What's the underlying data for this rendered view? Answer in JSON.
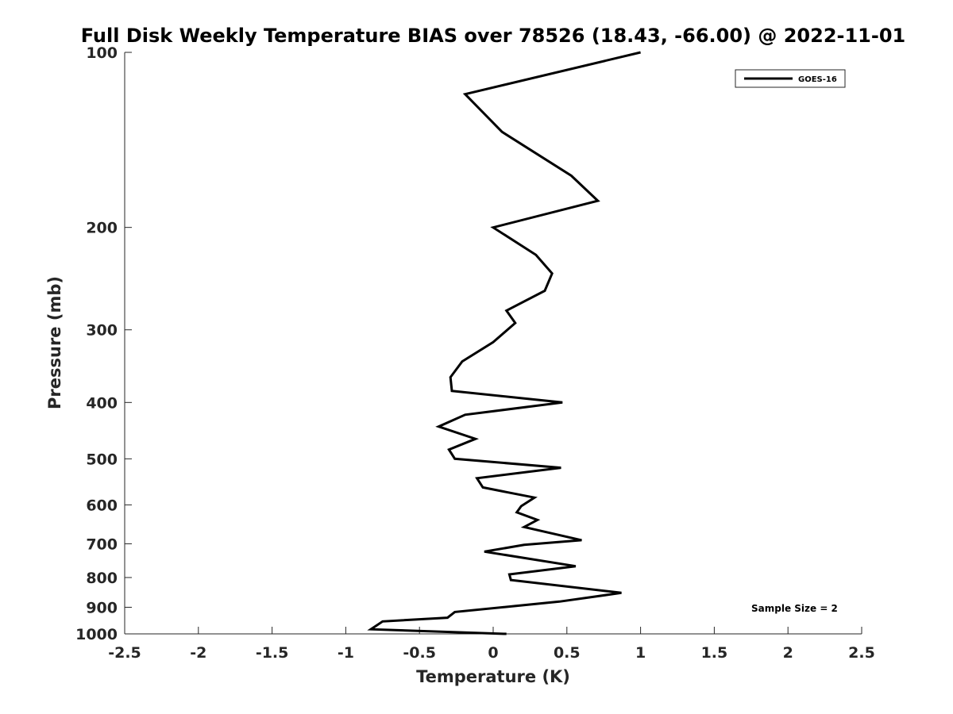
{
  "chart_data": {
    "type": "line",
    "title": "Full Disk Weekly Temperature BIAS over 78526 (18.43, -66.00) @ 2022-11-01",
    "xlabel": "Temperature (K)",
    "ylabel": "Pressure (mb)",
    "xlim": [
      -2.5,
      2.5
    ],
    "ylim": [
      1000,
      100
    ],
    "y_scale": "log",
    "y_reversed": true,
    "x_ticks": [
      "-2.5",
      "-2",
      "-1.5",
      "-1",
      "-0.5",
      "0",
      "0.5",
      "1",
      "1.5",
      "2",
      "2.5"
    ],
    "y_ticks": [
      "100",
      "200",
      "300",
      "400",
      "500",
      "600",
      "700",
      "800",
      "900",
      "1000"
    ],
    "grid": false,
    "legend_position": "top-right",
    "annotation": "Sample Size = 2",
    "series": [
      {
        "name": "GOES-16",
        "color": "#000000",
        "points": [
          {
            "x": 1.0,
            "y": 100
          },
          {
            "x": -0.19,
            "y": 118
          },
          {
            "x": 0.06,
            "y": 137
          },
          {
            "x": 0.53,
            "y": 163
          },
          {
            "x": 0.71,
            "y": 180
          },
          {
            "x": 0.0,
            "y": 200
          },
          {
            "x": 0.29,
            "y": 223
          },
          {
            "x": 0.4,
            "y": 240
          },
          {
            "x": 0.35,
            "y": 257
          },
          {
            "x": 0.09,
            "y": 278
          },
          {
            "x": 0.15,
            "y": 292
          },
          {
            "x": 0.0,
            "y": 315
          },
          {
            "x": -0.21,
            "y": 340
          },
          {
            "x": -0.29,
            "y": 362
          },
          {
            "x": -0.28,
            "y": 382
          },
          {
            "x": 0.47,
            "y": 400
          },
          {
            "x": -0.19,
            "y": 420
          },
          {
            "x": -0.37,
            "y": 440
          },
          {
            "x": -0.12,
            "y": 462
          },
          {
            "x": -0.3,
            "y": 482
          },
          {
            "x": -0.26,
            "y": 500
          },
          {
            "x": 0.46,
            "y": 518
          },
          {
            "x": -0.11,
            "y": 540
          },
          {
            "x": -0.07,
            "y": 560
          },
          {
            "x": 0.28,
            "y": 583
          },
          {
            "x": 0.19,
            "y": 603
          },
          {
            "x": 0.16,
            "y": 618
          },
          {
            "x": 0.3,
            "y": 637
          },
          {
            "x": 0.21,
            "y": 655
          },
          {
            "x": 0.6,
            "y": 690
          },
          {
            "x": 0.21,
            "y": 703
          },
          {
            "x": -0.06,
            "y": 722
          },
          {
            "x": 0.56,
            "y": 765
          },
          {
            "x": 0.11,
            "y": 790
          },
          {
            "x": 0.12,
            "y": 808
          },
          {
            "x": 0.87,
            "y": 850
          },
          {
            "x": 0.45,
            "y": 880
          },
          {
            "x": -0.26,
            "y": 917
          },
          {
            "x": -0.31,
            "y": 938
          },
          {
            "x": -0.75,
            "y": 952
          },
          {
            "x": -0.83,
            "y": 982
          },
          {
            "x": 0.09,
            "y": 1000
          }
        ]
      }
    ]
  }
}
